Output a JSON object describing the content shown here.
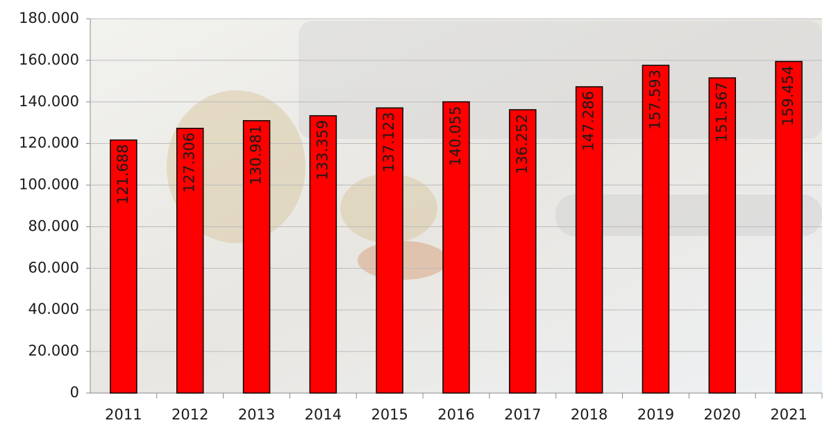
{
  "chart_data": {
    "type": "bar",
    "categories": [
      "2011",
      "2012",
      "2013",
      "2014",
      "2015",
      "2016",
      "2017",
      "2018",
      "2019",
      "2020",
      "2021"
    ],
    "values": [
      121688,
      127306,
      130981,
      133359,
      137123,
      140055,
      136252,
      147286,
      157593,
      151567,
      159454
    ],
    "value_labels": [
      "121.688",
      "127.306",
      "130.981",
      "133.359",
      "137.123",
      "140.055",
      "136.252",
      "147.286",
      "157.593",
      "151.567",
      "159.454"
    ],
    "color": "#ff0000",
    "ylim": [
      0,
      180000
    ],
    "yticks": [
      0,
      {
        "value": 20000,
        "label": "20.000"
      },
      {
        "value": 40000,
        "label": "40.000"
      },
      {
        "value": 60000,
        "label": "60.000"
      },
      {
        "value": 80000,
        "label": "80.000"
      },
      {
        "value": 100000,
        "label": "100.000"
      },
      {
        "value": 120000,
        "label": "120.000"
      },
      {
        "value": 140000,
        "label": "140.000"
      },
      {
        "value": 160000,
        "label": "160.000"
      },
      {
        "value": 180000,
        "label": "180.000"
      }
    ],
    "grid": true
  }
}
